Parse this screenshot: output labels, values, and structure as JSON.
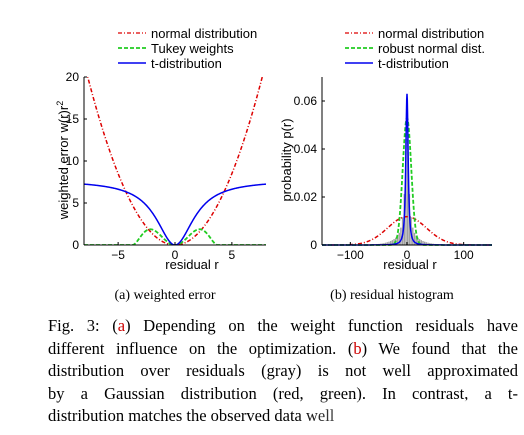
{
  "chart_data": [
    {
      "type": "line",
      "subtitle": "(a) weighted error",
      "xlabel": "residual r",
      "ylabel": "weighted error w(r)r",
      "ylabel_sup": "2",
      "xlim": [
        -8,
        8
      ],
      "ylim": [
        0,
        20
      ],
      "xticks": [
        -5,
        0,
        5
      ],
      "yticks": [
        0,
        5,
        10,
        15,
        20
      ],
      "grid": false,
      "legend_position": "top",
      "series": [
        {
          "name": "normal distribution",
          "color": "#dd0000",
          "style": "dashdot",
          "func": "normal"
        },
        {
          "name": "Tukey weights",
          "color": "#22cc22",
          "style": "dashed",
          "func": "tukey"
        },
        {
          "name": "t-distribution",
          "color": "#0000ee",
          "style": "solid",
          "func": "t"
        }
      ]
    },
    {
      "type": "line",
      "subtitle": "(b) residual histogram",
      "xlabel": "residual r",
      "ylabel": "probability p(r)",
      "xlim": [
        -150,
        150
      ],
      "ylim": [
        0,
        0.07
      ],
      "xticks": [
        -100,
        0,
        100
      ],
      "yticks": [
        0,
        0.02,
        0.04,
        0.06
      ],
      "ytick_labels": [
        "0",
        "0.02",
        "0.04",
        "0.06"
      ],
      "grid": false,
      "legend_position": "top",
      "histogram": {
        "color": "#a0a0a0",
        "peak": 0.066,
        "description_values": "gray residual histogram bars"
      },
      "series": [
        {
          "name": "normal distribution",
          "color": "#dd0000",
          "style": "dashdot",
          "mu": 0,
          "sigma": 34,
          "peak": 0.0118
        },
        {
          "name": "robust normal dist.",
          "color": "#22cc22",
          "style": "dashed",
          "mu": 0,
          "sigma": 7.5,
          "peak": 0.053
        },
        {
          "name": "t-distribution",
          "color": "#0000ee",
          "style": "solid",
          "peak": 0.063
        }
      ]
    }
  ],
  "caption": {
    "line1_a": "Fig. 3: (",
    "ref_a": "a",
    "line1_b": ") Depending on the weight function residuals have",
    "line2": "different influence on the optimization. (",
    "ref_b": "b",
    "line2_b": ") We found that the",
    "line3": "distribution over residuals (gray) is not well approximated",
    "line4": "by a Gaussian distribution (red, green). In contrast, a t-",
    "line5": "distribution matches the observed data well"
  }
}
